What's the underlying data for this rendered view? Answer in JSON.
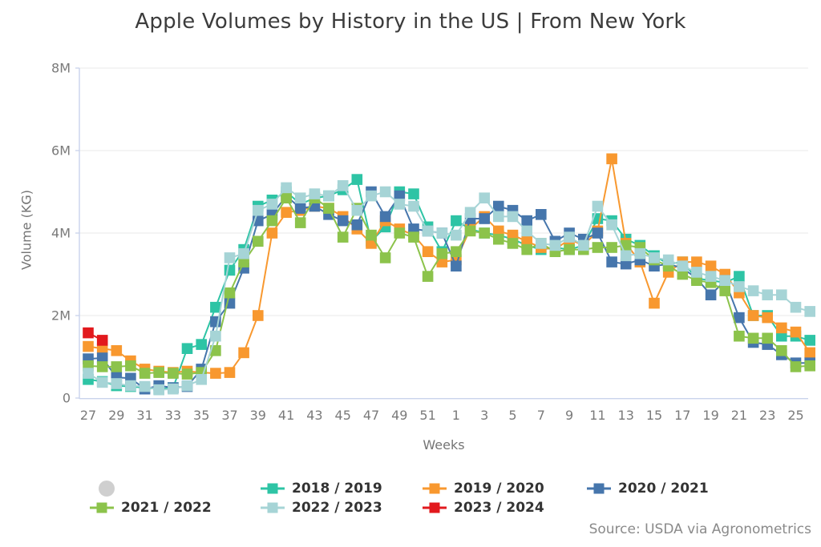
{
  "title": "Apple Volumes by History in the US | From New York",
  "source": "Source: USDA via Agronometrics",
  "chart_data": {
    "type": "line",
    "title": "Apple Volumes by History in the US | From New York",
    "xlabel": "Weeks",
    "ylabel": "Volume (KG)",
    "values_unit": "millions of KG",
    "ylim": [
      0,
      8
    ],
    "ytick_values": [
      0,
      2,
      4,
      6,
      8
    ],
    "ytick_labels": [
      "0",
      "2M",
      "4M",
      "6M",
      "8M"
    ],
    "grid": "horizontal",
    "legend_position": "bottom",
    "marker": "square",
    "x_categories": [
      "27",
      "28",
      "29",
      "30",
      "31",
      "32",
      "33",
      "34",
      "35",
      "36",
      "37",
      "38",
      "39",
      "40",
      "41",
      "42",
      "43",
      "44",
      "45",
      "46",
      "47",
      "48",
      "49",
      "50",
      "51",
      "52",
      "1",
      "2",
      "3",
      "4",
      "5",
      "6",
      "7",
      "8",
      "9",
      "10",
      "11",
      "12",
      "13",
      "14",
      "15",
      "16",
      "17",
      "18",
      "19",
      "20",
      "21",
      "22",
      "23",
      "24",
      "25",
      "26"
    ],
    "xtick_shown": [
      "27",
      "29",
      "31",
      "33",
      "35",
      "37",
      "39",
      "41",
      "43",
      "45",
      "47",
      "49",
      "51",
      "1",
      "3",
      "5",
      "7",
      "9",
      "11",
      "13",
      "15",
      "17",
      "19",
      "21",
      "23",
      "25"
    ],
    "series": [
      {
        "name": "2018 / 2019",
        "color": "#2EC4A5",
        "values": [
          0.45,
          0.4,
          0.3,
          0.28,
          0.25,
          0.22,
          0.25,
          1.2,
          1.3,
          2.2,
          3.1,
          3.6,
          4.65,
          4.8,
          5.0,
          4.7,
          4.85,
          4.9,
          5.05,
          5.3,
          3.8,
          4.15,
          5.0,
          4.95,
          4.15,
          3.55,
          4.3,
          4.1,
          4.0,
          3.95,
          3.85,
          3.7,
          3.6,
          3.65,
          3.6,
          3.7,
          4.35,
          4.3,
          3.85,
          3.7,
          3.45,
          3.25,
          3.3,
          2.9,
          2.85,
          2.8,
          2.95,
          2.0,
          2.0,
          1.5,
          1.5,
          1.4
        ]
      },
      {
        "name": "2019 / 2020",
        "color": "#F8982F",
        "values": [
          1.25,
          1.2,
          1.15,
          0.9,
          0.7,
          0.65,
          0.62,
          0.65,
          0.62,
          0.6,
          0.62,
          1.1,
          2.0,
          4.0,
          4.5,
          4.55,
          4.65,
          4.6,
          4.4,
          4.1,
          3.75,
          4.3,
          4.1,
          3.95,
          3.55,
          3.3,
          3.35,
          4.1,
          4.4,
          4.05,
          3.95,
          3.8,
          3.65,
          3.6,
          3.85,
          3.7,
          4.05,
          5.8,
          3.75,
          3.3,
          2.3,
          3.05,
          3.3,
          3.3,
          3.2,
          3.0,
          2.55,
          2.0,
          1.95,
          1.7,
          1.6,
          1.1
        ]
      },
      {
        "name": "2020 / 2021",
        "color": "#4676AC",
        "values": [
          0.95,
          0.97,
          0.5,
          0.48,
          0.22,
          0.3,
          0.25,
          0.28,
          0.7,
          1.85,
          2.3,
          3.15,
          4.3,
          4.45,
          4.9,
          4.6,
          4.65,
          4.45,
          4.3,
          4.2,
          5.0,
          4.4,
          4.9,
          4.1,
          4.05,
          4.0,
          3.2,
          4.35,
          4.35,
          4.65,
          4.55,
          4.3,
          4.45,
          3.8,
          4.0,
          3.85,
          4.0,
          3.3,
          3.25,
          3.35,
          3.2,
          3.25,
          3.15,
          2.9,
          2.5,
          2.85,
          1.95,
          1.35,
          1.3,
          1.05,
          0.85,
          0.85
        ]
      },
      {
        "name": "2021 / 2022",
        "color": "#8CC34B",
        "values": [
          0.78,
          0.76,
          0.76,
          0.78,
          0.6,
          0.62,
          0.6,
          0.58,
          0.62,
          1.15,
          2.55,
          3.3,
          3.8,
          4.3,
          4.85,
          4.25,
          4.85,
          4.6,
          3.9,
          4.6,
          3.95,
          3.4,
          4.0,
          3.9,
          2.95,
          3.5,
          3.55,
          4.05,
          4.0,
          3.85,
          3.75,
          3.6,
          3.75,
          3.55,
          3.6,
          3.6,
          3.65,
          3.65,
          3.7,
          3.65,
          3.35,
          3.2,
          3.0,
          2.85,
          2.8,
          2.6,
          1.5,
          1.45,
          1.45,
          1.15,
          0.76,
          0.78
        ]
      },
      {
        "name": "2022 / 2023",
        "color": "#A6D4D6",
        "values": [
          0.6,
          0.38,
          0.35,
          0.3,
          0.28,
          0.2,
          0.22,
          0.3,
          0.45,
          1.5,
          3.4,
          3.5,
          4.55,
          4.7,
          5.1,
          4.85,
          4.95,
          4.9,
          5.15,
          4.55,
          4.9,
          5.0,
          4.7,
          4.65,
          4.05,
          4.0,
          3.95,
          4.5,
          4.85,
          4.4,
          4.4,
          4.05,
          3.75,
          3.7,
          3.9,
          3.7,
          4.65,
          4.2,
          3.45,
          3.5,
          3.4,
          3.35,
          3.2,
          3.05,
          2.95,
          2.85,
          2.7,
          2.6,
          2.5,
          2.5,
          2.2,
          2.1
        ]
      },
      {
        "name": "2023 / 2024",
        "color": "#E2191D",
        "values": [
          1.58,
          1.4,
          null,
          null,
          null,
          null,
          null,
          null,
          null,
          null,
          null,
          null,
          null,
          null,
          null,
          null,
          null,
          null,
          null,
          null,
          null,
          null,
          null,
          null,
          null,
          null,
          null,
          null,
          null,
          null,
          null,
          null,
          null,
          null,
          null,
          null,
          null,
          null,
          null,
          null,
          null,
          null,
          null,
          null,
          null,
          null,
          null,
          null,
          null,
          null,
          null,
          null
        ]
      }
    ]
  },
  "legend": {
    "items": [
      {
        "label": "",
        "marker": "circle",
        "color": "#CFCFCF"
      },
      {
        "label": "2018 / 2019",
        "marker": "square-line",
        "color": "#2EC4A5"
      },
      {
        "label": "2019 / 2020",
        "marker": "square-line",
        "color": "#F8982F"
      },
      {
        "label": "2020 / 2021",
        "marker": "square-line",
        "color": "#4676AC"
      },
      {
        "label": "2021 / 2022",
        "marker": "square-line",
        "color": "#8CC34B"
      },
      {
        "label": "2022 / 2023",
        "marker": "square-line",
        "color": "#A6D4D6"
      },
      {
        "label": "2023 / 2024",
        "marker": "square-line",
        "color": "#E2191D"
      }
    ]
  }
}
